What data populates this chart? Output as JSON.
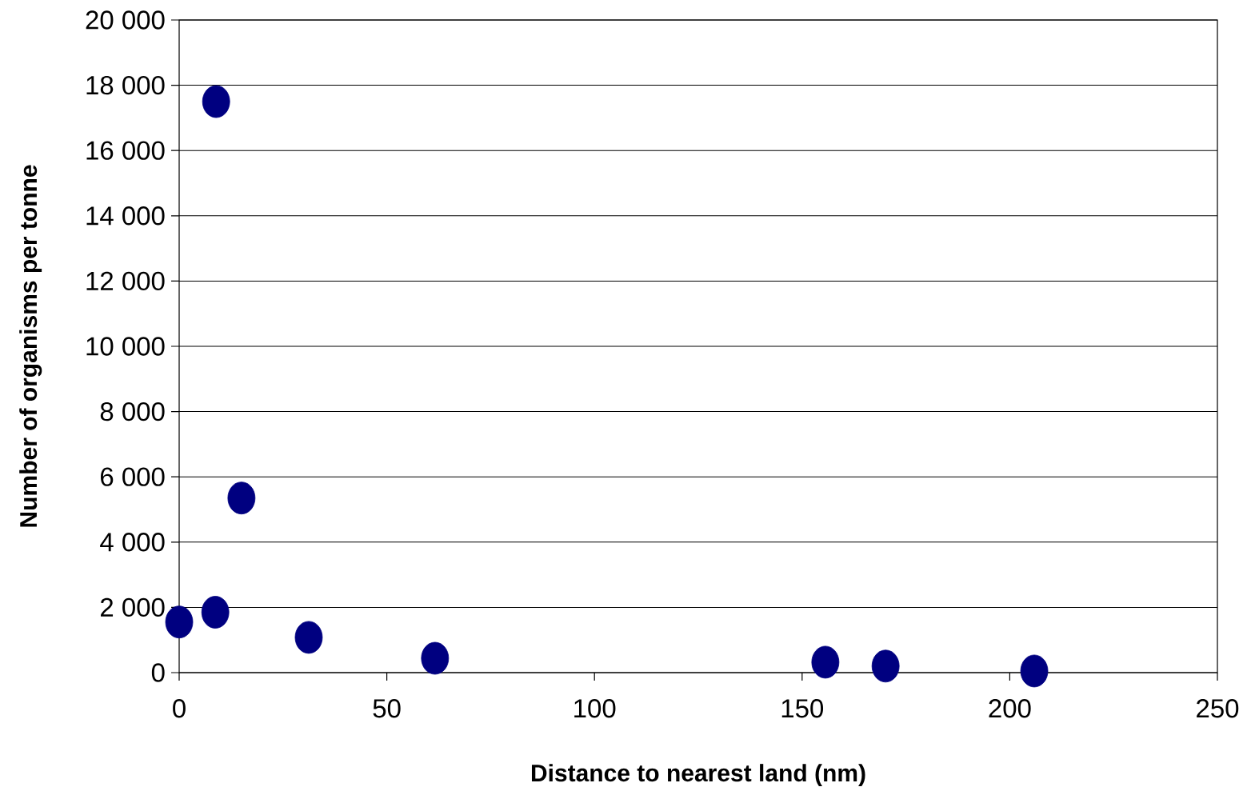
{
  "chart_data": {
    "type": "scatter",
    "xlabel": "Distance to nearest land (nm)",
    "ylabel": "Number of organisms per tonne",
    "x": [
      0,
      8.9,
      15.0,
      8.7,
      31.2,
      61.6,
      155.6,
      170.1,
      205.9
    ],
    "values": [
      1550,
      17500,
      5350,
      1850,
      1080,
      440,
      320,
      200,
      50
    ],
    "color": "#000080",
    "marker": "circle",
    "grid": "y",
    "xlim": [
      0,
      250
    ],
    "xticks": [
      0,
      50,
      100,
      150,
      200,
      250
    ],
    "ylim": [
      0,
      20000
    ],
    "yticks": [
      0,
      {
        "value": 2000,
        "label": "2 000"
      },
      {
        "value": 4000,
        "label": "4 000"
      },
      {
        "value": 6000,
        "label": "6 000"
      },
      {
        "value": 8000,
        "label": "8 000"
      },
      {
        "value": 10000,
        "label": "10 000"
      },
      {
        "value": 12000,
        "label": "12 000"
      },
      {
        "value": 14000,
        "label": "14 000"
      },
      {
        "value": 16000,
        "label": "16 000"
      },
      {
        "value": 18000,
        "label": "18 000"
      },
      {
        "value": 20000,
        "label": "20 000"
      }
    ]
  }
}
